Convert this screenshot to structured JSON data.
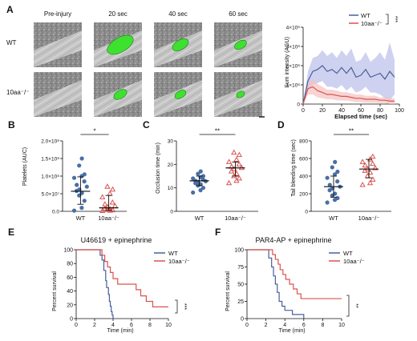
{
  "panel_labels": {
    "a": "A",
    "b": "B",
    "c": "C",
    "d": "D",
    "e": "E",
    "f": "F"
  },
  "micrographs": {
    "columns": [
      "Pre-injury",
      "20 sec",
      "40 sec",
      "60 sec"
    ],
    "rows": [
      "WT",
      "10aa⁻/⁻"
    ],
    "thrombus_color": "#3ee12f",
    "thrombus_level": [
      [
        0,
        1.0,
        0.5,
        0.3
      ],
      [
        0,
        0.35,
        0.25,
        0.1
      ]
    ]
  },
  "chart_data": [
    {
      "panel": "A",
      "type": "line",
      "xlabel": "Elapsed time (sec)",
      "ylabel": "Sum intensity (AGU)",
      "xlim": [
        0,
        100
      ],
      "ylim": [
        0,
        4000000
      ],
      "x_ticks": [
        "0",
        "20",
        "40",
        "60",
        "80",
        "100"
      ],
      "y_ticks": [
        "0",
        "1×10⁶",
        "2×10⁶",
        "3×10⁶",
        "4×10⁶"
      ],
      "legend": "top-right",
      "significance": "***",
      "x": [
        0,
        5,
        10,
        15,
        20,
        25,
        30,
        35,
        40,
        45,
        50,
        55,
        60,
        65,
        70,
        75,
        80,
        85,
        90,
        95
      ],
      "series": [
        {
          "name": "WT",
          "color": "#4a5f9a",
          "band_color": "#b9bee8",
          "values": [
            0,
            1200000,
            1700000,
            1800000,
            2000000,
            1700000,
            1800000,
            1600000,
            1900000,
            1600000,
            1900000,
            1400000,
            1500000,
            1800000,
            1400000,
            1500000,
            1600000,
            1300000,
            1700000,
            1400000
          ],
          "sd": [
            0,
            500000,
            700000,
            700000,
            800000,
            800000,
            900000,
            800000,
            900000,
            900000,
            1000000,
            800000,
            800000,
            900000,
            800000,
            900000,
            1100000,
            1000000,
            1500000,
            900000
          ]
        },
        {
          "name": "10aa⁻/⁻",
          "color": "#d9534f",
          "band_color": "#f4c2c0",
          "values": [
            0,
            800000,
            900000,
            700000,
            600000,
            500000,
            500000,
            450000,
            400000,
            400000,
            350000,
            300000,
            300000,
            250000,
            250000,
            250000,
            200000,
            200000,
            150000,
            150000
          ],
          "sd": [
            0,
            300000,
            400000,
            350000,
            300000,
            250000,
            250000,
            250000,
            220000,
            220000,
            200000,
            200000,
            200000,
            180000,
            180000,
            180000,
            150000,
            150000,
            150000,
            150000
          ]
        }
      ]
    },
    {
      "panel": "B",
      "type": "scatter",
      "ylabel": "Platelets (AUC)",
      "ylim": [
        0,
        200000000
      ],
      "y_ticks": [
        "0.0",
        "5.0×10⁷",
        "1.0×10⁸",
        "1.5×10⁸",
        "2.0×10⁸"
      ],
      "categories": [
        "WT",
        "10aa⁻/⁻"
      ],
      "significance": "*",
      "groups": [
        {
          "name": "WT",
          "marker": "circle",
          "color": "#4a6fa5",
          "values": [
            150000000,
            130000000,
            105000000,
            100000000,
            95000000,
            85000000,
            75000000,
            70000000,
            62000000,
            58000000,
            52000000,
            45000000,
            30000000,
            10000000,
            2000000
          ],
          "median": 57000000,
          "iqr": [
            20000000,
            98000000
          ]
        },
        {
          "name": "10aa⁻/⁻",
          "marker": "triangle",
          "color": "#d9534f",
          "values": [
            70000000,
            62000000,
            50000000,
            40000000,
            25000000,
            20000000,
            15000000,
            12000000,
            8000000,
            6000000,
            4000000,
            3000000,
            2000000,
            1000000
          ],
          "median": 10000000,
          "iqr": [
            3000000,
            45000000
          ]
        }
      ]
    },
    {
      "panel": "C",
      "type": "scatter",
      "ylabel": "Occlusion time (min)",
      "ylim": [
        0,
        30
      ],
      "y_ticks": [
        "0",
        "10",
        "20",
        "30"
      ],
      "categories": [
        "WT",
        "10aa⁻/⁻"
      ],
      "significance": "**",
      "groups": [
        {
          "name": "WT",
          "marker": "circle",
          "color": "#4a6fa5",
          "values": [
            17,
            16,
            15,
            14.5,
            14,
            13.5,
            13,
            12.8,
            12.5,
            12,
            11.5,
            11,
            10,
            9,
            8
          ],
          "median": 13,
          "iqr": [
            11,
            15
          ]
        },
        {
          "name": "10aa⁻/⁻",
          "marker": "triangle",
          "color": "#d9534f",
          "values": [
            25,
            24,
            22,
            21,
            20,
            19,
            18.5,
            18,
            17,
            16,
            15,
            14,
            13,
            12
          ],
          "median": 18.5,
          "iqr": [
            15,
            21
          ]
        }
      ]
    },
    {
      "panel": "D",
      "type": "scatter",
      "ylabel": "Tail bleeding time (sec)",
      "ylim": [
        0,
        800
      ],
      "y_ticks": [
        "0",
        "200",
        "400",
        "600",
        "800"
      ],
      "categories": [
        "WT",
        "10aa⁻/⁻"
      ],
      "significance": "**",
      "groups": [
        {
          "name": "WT",
          "marker": "circle",
          "color": "#4a6fa5",
          "values": [
            560,
            500,
            450,
            420,
            380,
            340,
            300,
            280,
            260,
            240,
            200,
            180,
            150,
            130,
            100
          ],
          "median": 280,
          "iqr": [
            160,
            400
          ]
        },
        {
          "name": "10aa⁻/⁻",
          "marker": "triangle",
          "color": "#d9534f",
          "values": [
            620,
            590,
            560,
            540,
            520,
            490,
            480,
            460,
            440,
            400,
            360,
            320,
            300
          ],
          "median": 480,
          "iqr": [
            380,
            590
          ]
        }
      ]
    },
    {
      "panel": "E",
      "type": "line",
      "title": "U46619 + epinephrine",
      "xlabel": "Time (min)",
      "ylabel": "Percent survival",
      "xlim": [
        0,
        10
      ],
      "ylim": [
        0,
        100
      ],
      "x_ticks": [
        "0",
        "2",
        "4",
        "6",
        "8",
        "10"
      ],
      "y_ticks": [
        "0",
        "20",
        "40",
        "60",
        "80",
        "100"
      ],
      "legend": "top-right",
      "significance": "***",
      "series": [
        {
          "name": "WT",
          "color": "#4a5f9a",
          "steps": [
            [
              0,
              100
            ],
            [
              2.5,
              100
            ],
            [
              2.6,
              92
            ],
            [
              2.8,
              85
            ],
            [
              3.0,
              70
            ],
            [
              3.2,
              55
            ],
            [
              3.3,
              45
            ],
            [
              3.5,
              35
            ],
            [
              3.6,
              25
            ],
            [
              3.7,
              18
            ],
            [
              3.8,
              10
            ],
            [
              3.9,
              5
            ],
            [
              4.0,
              0
            ]
          ]
        },
        {
          "name": "10aa⁻/⁻",
          "color": "#d9534f",
          "steps": [
            [
              0,
              100
            ],
            [
              2.6,
              100
            ],
            [
              2.8,
              92
            ],
            [
              3.1,
              83
            ],
            [
              3.4,
              75
            ],
            [
              3.7,
              67
            ],
            [
              4.0,
              58
            ],
            [
              4.5,
              50
            ],
            [
              6.5,
              42
            ],
            [
              7.0,
              33
            ],
            [
              7.6,
              25
            ],
            [
              8.3,
              17
            ],
            [
              10.0,
              17
            ]
          ]
        }
      ]
    },
    {
      "panel": "F",
      "type": "line",
      "title": "PAR4-AP + epinephrine",
      "xlabel": "Time (min)",
      "ylabel": "Percent survival",
      "xlim": [
        0,
        10
      ],
      "ylim": [
        0,
        100
      ],
      "x_ticks": [
        "0",
        "2",
        "4",
        "6",
        "8",
        "10"
      ],
      "y_ticks": [
        "0",
        "25",
        "50",
        "75",
        "100"
      ],
      "legend": "top-right",
      "significance": "**",
      "series": [
        {
          "name": "WT",
          "color": "#4a5f9a",
          "steps": [
            [
              0,
              100
            ],
            [
              2.0,
              100
            ],
            [
              2.3,
              88
            ],
            [
              2.6,
              75
            ],
            [
              2.8,
              62
            ],
            [
              3.0,
              50
            ],
            [
              3.2,
              38
            ],
            [
              3.4,
              25
            ],
            [
              3.7,
              18
            ],
            [
              4.0,
              12
            ],
            [
              4.8,
              6
            ],
            [
              6.0,
              0
            ]
          ]
        },
        {
          "name": "10aa⁻/⁻",
          "color": "#d9534f",
          "steps": [
            [
              0,
              100
            ],
            [
              2.5,
              100
            ],
            [
              2.7,
              93
            ],
            [
              3.0,
              86
            ],
            [
              3.3,
              79
            ],
            [
              3.5,
              71
            ],
            [
              3.8,
              64
            ],
            [
              4.1,
              57
            ],
            [
              4.5,
              50
            ],
            [
              4.9,
              43
            ],
            [
              5.3,
              36
            ],
            [
              5.7,
              29
            ],
            [
              10.0,
              29
            ]
          ]
        }
      ]
    }
  ]
}
